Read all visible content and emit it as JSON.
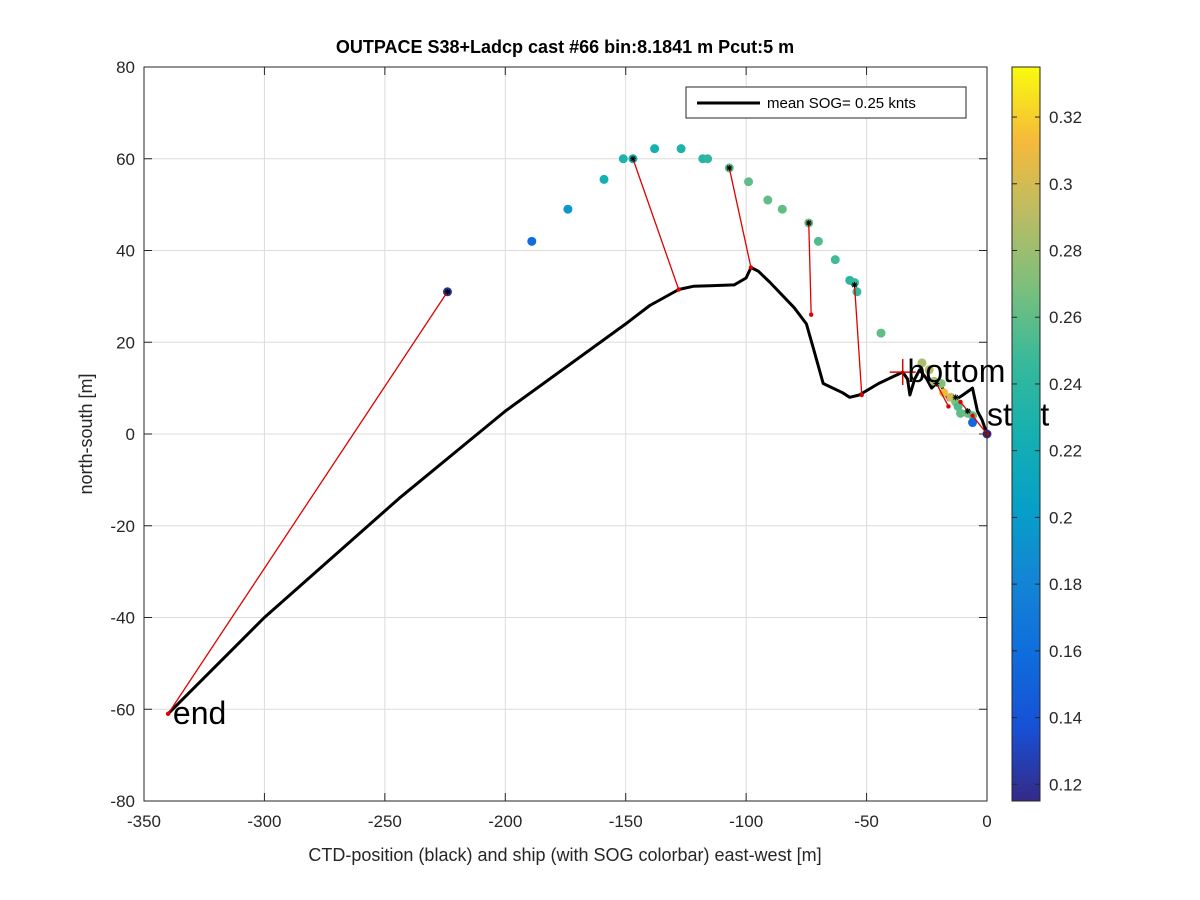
{
  "chart_data": {
    "type": "scatter",
    "title": "OUTPACE S38+Ladcp cast #66 bin:8.1841 m  Pcut:5 m",
    "xlabel": "CTD-position (black) and ship (with SOG colorbar) east-west [m]",
    "ylabel": "north-south [m]",
    "xlim": [
      -350,
      0
    ],
    "ylim": [
      -80,
      80
    ],
    "xticks": [
      "-350",
      "-300",
      "-250",
      "-200",
      "-150",
      "-100",
      "-50",
      "0"
    ],
    "yticks": [
      "-80",
      "-60",
      "-40",
      "-20",
      "0",
      "20",
      "40",
      "60",
      "80"
    ],
    "grid": true,
    "legend": {
      "position": "top-right",
      "label": "mean SOG=  0.25 knts"
    },
    "colorbar": {
      "range": [
        0.115,
        0.335
      ],
      "ticks": [
        "0.12",
        "0.14",
        "0.16",
        "0.18",
        "0.2",
        "0.22",
        "0.24",
        "0.26",
        "0.28",
        "0.3",
        "0.32"
      ]
    },
    "ctd_track": [
      [
        -340,
        -61
      ],
      [
        -300,
        -40
      ],
      [
        -244,
        -14
      ],
      [
        -200,
        5
      ],
      [
        -150,
        24
      ],
      [
        -140,
        28
      ],
      [
        -128,
        31.5
      ],
      [
        -122,
        32.2
      ],
      [
        -115,
        32.3
      ],
      [
        -105,
        32.5
      ],
      [
        -100,
        34
      ],
      [
        -98,
        36.3
      ],
      [
        -95,
        35.5
      ],
      [
        -90,
        33
      ],
      [
        -80,
        27.5
      ],
      [
        -75,
        24
      ],
      [
        -72,
        18.5
      ],
      [
        -68,
        11
      ],
      [
        -60,
        9
      ],
      [
        -57,
        8
      ],
      [
        -53,
        8.5
      ],
      [
        -45,
        11
      ],
      [
        -35,
        13.5
      ],
      [
        -33,
        12
      ],
      [
        -32,
        8.5
      ],
      [
        -30,
        12
      ],
      [
        -28,
        14
      ],
      [
        -25,
        12
      ],
      [
        -23,
        10
      ],
      [
        -20,
        11.5
      ],
      [
        -16,
        7.5
      ],
      [
        -13,
        7.5
      ],
      [
        -10,
        8.5
      ],
      [
        -6,
        10
      ],
      [
        -4,
        5
      ],
      [
        -2,
        3
      ],
      [
        0,
        0
      ]
    ],
    "connectors": [
      [
        [
          -340,
          -61
        ],
        [
          -224,
          31
        ]
      ],
      [
        [
          -128,
          31.5
        ],
        [
          -147,
          60
        ]
      ],
      [
        [
          -98,
          36.3
        ],
        [
          -107,
          58
        ]
      ],
      [
        [
          -73,
          26
        ],
        [
          -74,
          46
        ]
      ],
      [
        [
          -52,
          8.5
        ],
        [
          -55,
          32.5
        ]
      ],
      [
        [
          -16,
          6
        ],
        [
          -21,
          11
        ]
      ],
      [
        [
          -11,
          7
        ],
        [
          -8,
          5
        ]
      ],
      [
        [
          -6,
          4
        ],
        [
          0,
          0
        ]
      ]
    ],
    "ship_points": [
      {
        "x": -224,
        "y": 31,
        "sog": 0.12
      },
      {
        "x": -189,
        "y": 42,
        "sog": 0.16
      },
      {
        "x": -174,
        "y": 49,
        "sog": 0.195
      },
      {
        "x": -159,
        "y": 55.5,
        "sog": 0.225
      },
      {
        "x": -151,
        "y": 60,
        "sog": 0.23
      },
      {
        "x": -147,
        "y": 60,
        "sog": 0.23
      },
      {
        "x": -138,
        "y": 62.2,
        "sog": 0.225
      },
      {
        "x": -127,
        "y": 62.2,
        "sog": 0.23
      },
      {
        "x": -118,
        "y": 60,
        "sog": 0.235
      },
      {
        "x": -116,
        "y": 60,
        "sog": 0.24
      },
      {
        "x": -107,
        "y": 58,
        "sog": 0.26
      },
      {
        "x": -99,
        "y": 55,
        "sog": 0.26
      },
      {
        "x": -91,
        "y": 51,
        "sog": 0.26
      },
      {
        "x": -85,
        "y": 49,
        "sog": 0.26
      },
      {
        "x": -74,
        "y": 46,
        "sog": 0.265
      },
      {
        "x": -70,
        "y": 42,
        "sog": 0.255
      },
      {
        "x": -63,
        "y": 38,
        "sog": 0.25
      },
      {
        "x": -57,
        "y": 33.5,
        "sog": 0.24
      },
      {
        "x": -55,
        "y": 33,
        "sog": 0.245
      },
      {
        "x": -54,
        "y": 31,
        "sog": 0.245
      },
      {
        "x": -44,
        "y": 22,
        "sog": 0.26
      },
      {
        "x": -27,
        "y": 15.5,
        "sog": 0.285
      },
      {
        "x": -24,
        "y": 14,
        "sog": 0.29
      },
      {
        "x": -22,
        "y": 11.5,
        "sog": 0.285
      },
      {
        "x": -19,
        "y": 11,
        "sog": 0.27
      },
      {
        "x": -18,
        "y": 9,
        "sog": 0.31
      },
      {
        "x": -15,
        "y": 8,
        "sog": 0.3
      },
      {
        "x": -13,
        "y": 7,
        "sog": 0.27
      },
      {
        "x": -12,
        "y": 6,
        "sog": 0.255
      },
      {
        "x": -11,
        "y": 4.5,
        "sog": 0.26
      },
      {
        "x": -8,
        "y": 4.5,
        "sog": 0.265
      },
      {
        "x": -6,
        "y": 4,
        "sog": 0.26
      },
      {
        "x": -6,
        "y": 2.5,
        "sog": 0.155
      },
      {
        "x": 0,
        "y": 0,
        "sog": 0.12
      }
    ],
    "ctd_markers": [
      [
        -224,
        31
      ],
      [
        -147,
        60
      ],
      [
        -107,
        58
      ],
      [
        -74,
        46
      ],
      [
        -55,
        32.5
      ],
      [
        -21,
        11
      ],
      [
        -13,
        8
      ],
      [
        -8,
        5
      ],
      [
        0,
        0
      ]
    ],
    "red_markers": [
      [
        -340,
        -61
      ],
      [
        -128,
        31.5
      ],
      [
        -98,
        36.3
      ],
      [
        -73,
        26
      ],
      [
        -52,
        8.5
      ],
      [
        -16,
        6
      ],
      [
        -11,
        7
      ],
      [
        -6,
        4
      ],
      [
        0,
        0
      ]
    ],
    "bottom_marker": [
      -35,
      13.5
    ],
    "annotations": [
      {
        "text": "bottom",
        "x": -33,
        "y": 13.5
      },
      {
        "text": "start",
        "x": 0,
        "y": 4
      },
      {
        "text": "end",
        "x": -338,
        "y": -61
      }
    ]
  }
}
